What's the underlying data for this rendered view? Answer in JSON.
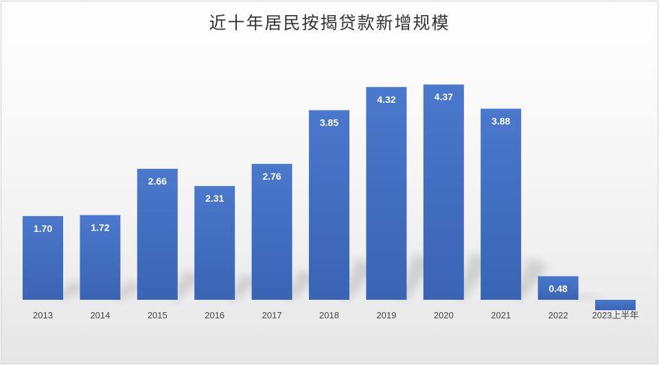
{
  "chart_data": {
    "type": "bar",
    "title": "近十年居民按揭贷款新增规模",
    "categories": [
      "2013",
      "2014",
      "2015",
      "2016",
      "2017",
      "2018",
      "2019",
      "2020",
      "2021",
      "2022",
      "2023上半年"
    ],
    "values": [
      1.7,
      1.72,
      2.66,
      2.31,
      2.76,
      3.85,
      4.32,
      4.37,
      3.88,
      0.48,
      -0.21
    ],
    "data_labels": [
      "1.70",
      "1.72",
      "2.66",
      "2.31",
      "2.76",
      "3.85",
      "4.32",
      "4.37",
      "3.88",
      "0.48",
      ""
    ],
    "xlabel": "",
    "ylabel": "",
    "grid": false,
    "bar_color": "#4472c4",
    "label_color": "#ffffff"
  }
}
